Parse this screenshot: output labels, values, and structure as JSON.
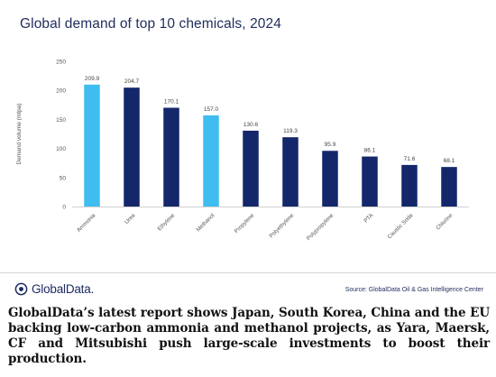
{
  "chart_data": {
    "type": "bar",
    "title": "Global demand of top 10 chemicals, 2024",
    "ylabel": "Demand volume (mtpa)",
    "xlabel": "",
    "ylim": [
      0,
      250
    ],
    "yticks": [
      0,
      50,
      100,
      150,
      200,
      250
    ],
    "grid": false,
    "categories": [
      "Ammonia",
      "Urea",
      "Ethylene",
      "Methanol",
      "Propylene",
      "Polyethylene",
      "Polypropylene",
      "PTA",
      "Caustic Soda",
      "Chlorine"
    ],
    "values": [
      209.9,
      204.7,
      170.1,
      157.0,
      130.6,
      119.3,
      95.9,
      86.1,
      71.6,
      68.1
    ],
    "value_labels": [
      "209.9",
      "204.7",
      "170.1",
      "157.0",
      "130.6",
      "119.3",
      "95.9",
      "86.1",
      "71.6",
      "68.1"
    ],
    "highlighted": [
      "Ammonia",
      "Methanol"
    ],
    "colors": {
      "highlight": "#3fbdf1",
      "default": "#14276b"
    }
  },
  "footer": {
    "logo_text": "GlobalData.",
    "source": "Source: GlobalData Oil & Gas Intelligence Center"
  },
  "caption": "GlobalData’s latest report shows Japan, South Korea, China and the EU backing low-carbon ammonia and methanol projects, as Yara, Maersk, CF and Mitsubishi push large-scale investments to boost their production."
}
